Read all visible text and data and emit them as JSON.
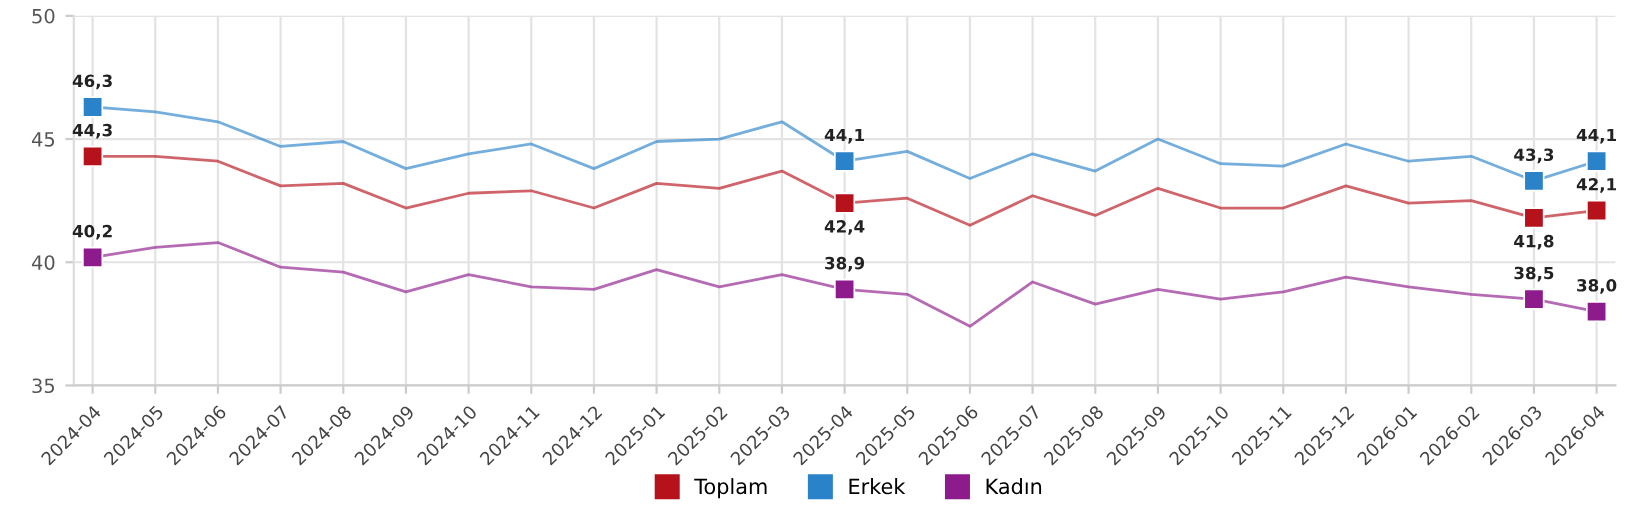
{
  "chart_data": {
    "type": "line",
    "categories": [
      "2024-04",
      "2024-05",
      "2024-06",
      "2024-07",
      "2024-08",
      "2024-09",
      "2024-10",
      "2024-11",
      "2024-12",
      "2025-01",
      "2025-02",
      "2025-03",
      "2025-04",
      "2025-05",
      "2025-06",
      "2025-07",
      "2025-08",
      "2025-09",
      "2025-10",
      "2025-11",
      "2025-12",
      "2026-01",
      "2026-02",
      "2026-03",
      "2026-04"
    ],
    "series": [
      {
        "name": "Toplam",
        "color": "#b5121b",
        "values": [
          44.3,
          44.3,
          44.1,
          43.1,
          43.2,
          42.2,
          42.8,
          42.9,
          42.2,
          43.2,
          43.0,
          43.7,
          42.4,
          42.6,
          41.5,
          42.7,
          41.9,
          43.0,
          42.2,
          42.2,
          43.1,
          42.4,
          42.5,
          41.8,
          42.1
        ],
        "value_labels": [
          "44,3",
          null,
          null,
          null,
          null,
          null,
          null,
          null,
          null,
          null,
          null,
          null,
          "42,4",
          null,
          null,
          null,
          null,
          null,
          null,
          null,
          null,
          null,
          null,
          "41,8",
          "42,1"
        ]
      },
      {
        "name": "Erkek",
        "color": "#2a82c9",
        "values": [
          46.3,
          46.1,
          45.7,
          44.7,
          44.9,
          43.8,
          44.4,
          44.8,
          43.8,
          44.9,
          45.0,
          45.7,
          44.1,
          44.5,
          43.4,
          44.4,
          43.7,
          45.0,
          44.0,
          43.9,
          44.8,
          44.1,
          44.3,
          43.3,
          44.1
        ],
        "value_labels": [
          "46,3",
          null,
          null,
          null,
          null,
          null,
          null,
          null,
          null,
          null,
          null,
          null,
          "44,1",
          null,
          null,
          null,
          null,
          null,
          null,
          null,
          null,
          null,
          null,
          "43,3",
          "44,1"
        ]
      },
      {
        "name": "Kadın",
        "color": "#8e1b8c",
        "values": [
          40.2,
          40.6,
          40.8,
          39.8,
          39.6,
          38.8,
          39.5,
          39.0,
          38.9,
          39.7,
          39.0,
          39.5,
          38.9,
          38.7,
          37.4,
          39.2,
          38.3,
          38.9,
          38.5,
          38.8,
          39.4,
          39.0,
          38.7,
          38.5,
          38.0
        ],
        "value_labels": [
          "40,2",
          null,
          null,
          null,
          null,
          null,
          null,
          null,
          null,
          null,
          null,
          null,
          "38,9",
          null,
          null,
          null,
          null,
          null,
          null,
          null,
          null,
          null,
          null,
          "38,5",
          "38,0"
        ]
      }
    ],
    "ylim": [
      35,
      50
    ],
    "yticks": [
      35,
      40,
      45,
      50
    ],
    "grid": true,
    "legend": "bottom",
    "line_style": "solid"
  }
}
